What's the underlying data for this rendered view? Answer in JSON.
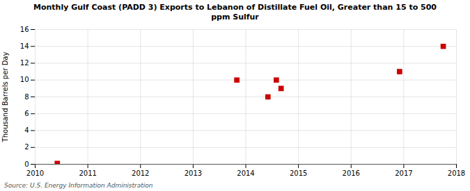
{
  "chart_data": {
    "type": "scatter",
    "title": "Monthly Gulf Coast (PADD 3) Exports to Lebanon of Distillate Fuel Oil, Greater than 15 to 500\nppm Sulfur",
    "ylabel": "Thousand Barrels per Day",
    "caption": "Source: U.S. Energy Information Administration",
    "x": [
      2010.42,
      2013.83,
      2014.42,
      2014.58,
      2014.67,
      2016.92,
      2017.75
    ],
    "values": [
      0.1,
      10.0,
      8.0,
      10.0,
      9.0,
      11.0,
      14.0
    ],
    "color": "#cc0000",
    "marker": "square",
    "xlim": [
      2010,
      2018
    ],
    "ylim": [
      0,
      16
    ],
    "xticks": [
      2010,
      2011,
      2012,
      2013,
      2014,
      2015,
      2016,
      2017,
      2018
    ],
    "yticks": [
      0,
      2,
      4,
      6,
      8,
      10,
      12,
      14,
      16
    ],
    "grid": true
  }
}
